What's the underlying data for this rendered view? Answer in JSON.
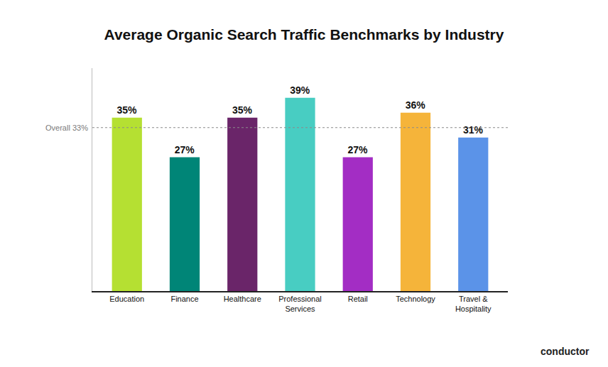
{
  "chart_data": {
    "type": "bar",
    "title": "Average Organic Search Traffic Benchmarks by Industry",
    "categories": [
      "Education",
      "Finance",
      "Healthcare",
      "Professional Services",
      "Retail",
      "Technology",
      "Travel & Hospitality"
    ],
    "values": [
      35,
      27,
      35,
      39,
      27,
      36,
      31
    ],
    "value_labels": [
      "35%",
      "27%",
      "35%",
      "39%",
      "27%",
      "36%",
      "31%"
    ],
    "colors": [
      "#b5e032",
      "#008577",
      "#6a2569",
      "#48cdc2",
      "#a32dc4",
      "#f5b43a",
      "#5b93e8"
    ],
    "reference_line": {
      "value": 33,
      "label": "Overall 33%"
    },
    "source": "conductor",
    "ylim": [
      0,
      45
    ],
    "yticks": [],
    "grid": false,
    "data_labels": true,
    "tick_labels": "x"
  }
}
